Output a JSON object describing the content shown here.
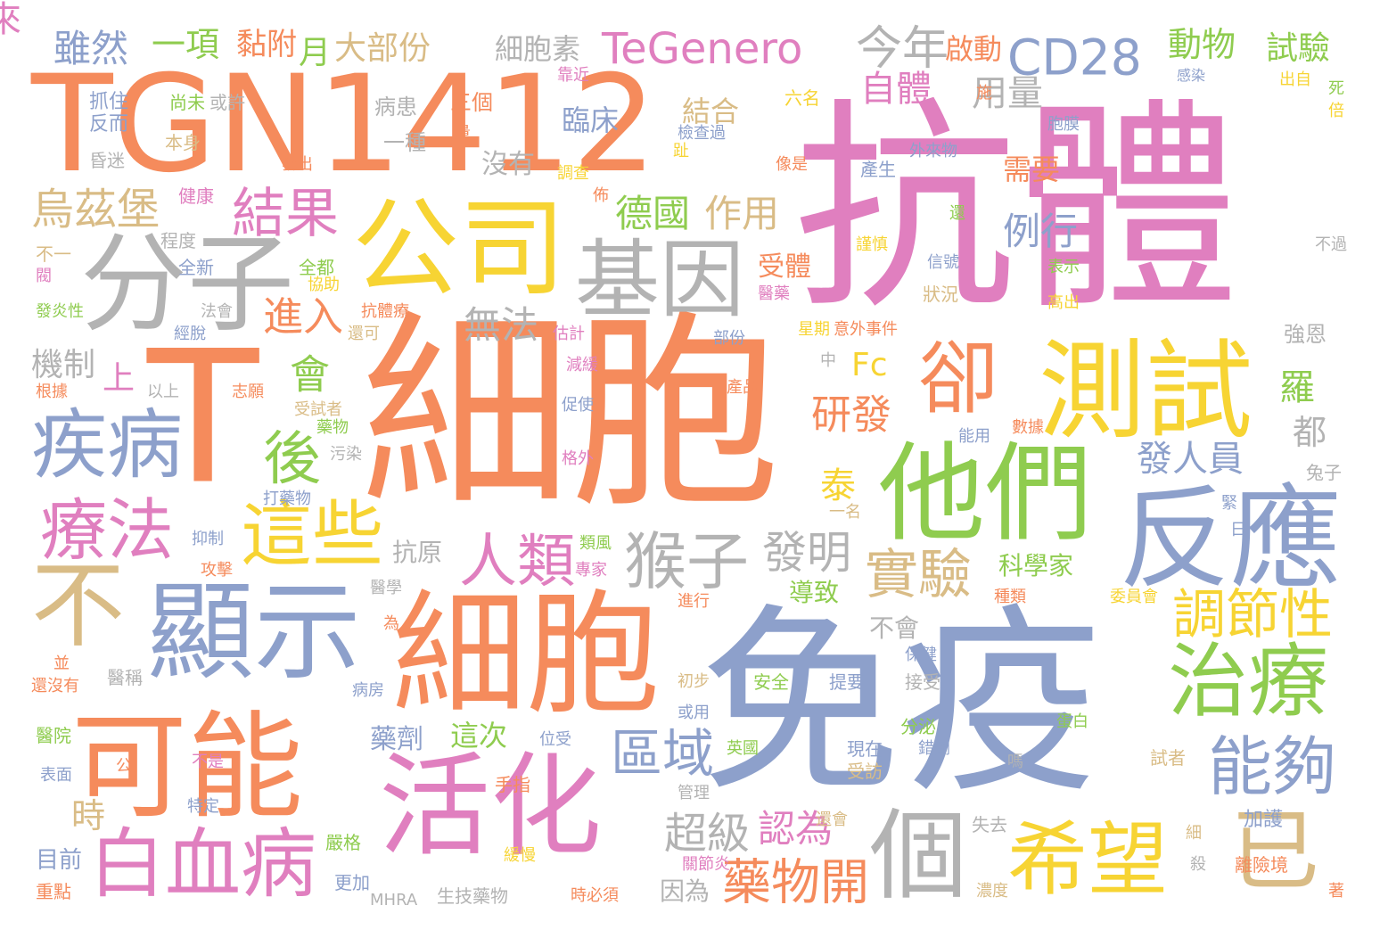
{
  "palette": {
    "orange": "#f58b5c",
    "pink": "#e07fbf",
    "blue": "#8da0cb",
    "green": "#8fcc4f",
    "yellow": "#f7d433",
    "tan": "#d9bc86",
    "gray": "#b3b3b3"
  },
  "words": [
    {
      "text": "抗體",
      "color": "pink"
    },
    {
      "text": "細胞",
      "color": "orange"
    },
    {
      "text": "免疫",
      "color": "blue"
    },
    {
      "text": "TGN1412",
      "color": "orange"
    },
    {
      "text": "T",
      "color": "orange"
    },
    {
      "text": "細胞",
      "color": "orange"
    },
    {
      "text": "分子",
      "color": "gray"
    },
    {
      "text": "公司",
      "color": "yellow"
    },
    {
      "text": "測試",
      "color": "yellow"
    },
    {
      "text": "他們",
      "color": "green"
    },
    {
      "text": "反應",
      "color": "blue"
    },
    {
      "text": "活化",
      "color": "pink"
    },
    {
      "text": "可能",
      "color": "orange"
    },
    {
      "text": "顯示",
      "color": "blue"
    },
    {
      "text": "基因",
      "color": "gray"
    },
    {
      "text": "卻",
      "color": "orange"
    },
    {
      "text": "不",
      "color": "tan"
    },
    {
      "text": "疾病",
      "color": "blue"
    },
    {
      "text": "療法",
      "color": "pink"
    },
    {
      "text": "治療",
      "color": "green"
    },
    {
      "text": "希望",
      "color": "yellow"
    },
    {
      "text": "個",
      "color": "gray"
    },
    {
      "text": "白血病",
      "color": "pink"
    },
    {
      "text": "已",
      "color": "tan"
    },
    {
      "text": "這些",
      "color": "yellow"
    },
    {
      "text": "結果",
      "color": "pink"
    },
    {
      "text": "能夠",
      "color": "blue"
    },
    {
      "text": "人類",
      "color": "pink"
    },
    {
      "text": "猴子",
      "color": "gray"
    },
    {
      "text": "實驗",
      "color": "tan"
    },
    {
      "text": "調節性",
      "color": "yellow"
    },
    {
      "text": "TeGenero",
      "color": "pink"
    },
    {
      "text": "CD28",
      "color": "blue"
    },
    {
      "text": "今年",
      "color": "gray"
    },
    {
      "text": "後",
      "color": "green"
    },
    {
      "text": "區域",
      "color": "blue"
    },
    {
      "text": "藥物開",
      "color": "orange"
    },
    {
      "text": "烏茲堡",
      "color": "tan"
    },
    {
      "text": "發明",
      "color": "gray"
    },
    {
      "text": "研發",
      "color": "orange"
    },
    {
      "text": "會",
      "color": "green"
    },
    {
      "text": "超級",
      "color": "gray"
    },
    {
      "text": "認為",
      "color": "pink"
    },
    {
      "text": "德國",
      "color": "green"
    },
    {
      "text": "作用",
      "color": "tan"
    },
    {
      "text": "來",
      "color": "pink"
    },
    {
      "text": "無法",
      "color": "gray"
    },
    {
      "text": "進入",
      "color": "orange"
    },
    {
      "text": "發人員",
      "color": "blue"
    },
    {
      "text": "泰",
      "color": "yellow"
    },
    {
      "text": "羅",
      "color": "green"
    },
    {
      "text": "都",
      "color": "gray"
    },
    {
      "text": "例行",
      "color": "blue"
    },
    {
      "text": "自體",
      "color": "pink"
    },
    {
      "text": "用量",
      "color": "gray"
    },
    {
      "text": "動物",
      "color": "green"
    },
    {
      "text": "試驗",
      "color": "green"
    },
    {
      "text": "雖然",
      "color": "blue"
    },
    {
      "text": "一項",
      "color": "green"
    },
    {
      "text": "黏附",
      "color": "orange"
    },
    {
      "text": "月",
      "color": "green"
    },
    {
      "text": "大部份",
      "color": "tan"
    },
    {
      "text": "細胞素",
      "color": "gray"
    },
    {
      "text": "啟動",
      "color": "orange"
    },
    {
      "text": "臨床",
      "color": "blue"
    },
    {
      "text": "結合",
      "color": "tan"
    },
    {
      "text": "沒有",
      "color": "gray"
    },
    {
      "text": "需要",
      "color": "orange"
    },
    {
      "text": "時",
      "color": "tan"
    },
    {
      "text": "機制",
      "color": "gray"
    },
    {
      "text": "上",
      "color": "pink"
    },
    {
      "text": "Fc",
      "color": "yellow"
    },
    {
      "text": "受體",
      "color": "orange"
    },
    {
      "text": "這次",
      "color": "green"
    },
    {
      "text": "藥劑",
      "color": "blue"
    },
    {
      "text": "抗原",
      "color": "gray"
    },
    {
      "text": "科學家",
      "color": "green"
    },
    {
      "text": "導致",
      "color": "green"
    },
    {
      "text": "不會",
      "color": "gray"
    },
    {
      "text": "因為",
      "color": "gray"
    },
    {
      "text": "三個",
      "color": "orange"
    },
    {
      "text": "病患",
      "color": "gray"
    },
    {
      "text": "一種",
      "color": "gray"
    },
    {
      "text": "抓住",
      "color": "blue"
    },
    {
      "text": "反而",
      "color": "blue"
    },
    {
      "text": "尚未",
      "color": "green"
    },
    {
      "text": "或許",
      "color": "gray"
    },
    {
      "text": "本身",
      "color": "tan"
    },
    {
      "text": "昏迷",
      "color": "gray"
    },
    {
      "text": "健康",
      "color": "pink"
    },
    {
      "text": "程度",
      "color": "gray"
    },
    {
      "text": "不一",
      "color": "tan"
    },
    {
      "text": "全新",
      "color": "blue"
    },
    {
      "text": "全都",
      "color": "green"
    },
    {
      "text": "協助",
      "color": "yellow"
    },
    {
      "text": "發炎性",
      "color": "green"
    },
    {
      "text": "法會",
      "color": "gray"
    },
    {
      "text": "經脫",
      "color": "blue"
    },
    {
      "text": "還可",
      "color": "tan"
    },
    {
      "text": "以上",
      "color": "gray"
    },
    {
      "text": "志願",
      "color": "orange"
    },
    {
      "text": "根據",
      "color": "orange"
    },
    {
      "text": "受試者",
      "color": "tan"
    },
    {
      "text": "藥物",
      "color": "green"
    },
    {
      "text": "污染",
      "color": "gray"
    },
    {
      "text": "打藥物",
      "color": "blue"
    },
    {
      "text": "抑制",
      "color": "blue"
    },
    {
      "text": "攻擊",
      "color": "orange"
    },
    {
      "text": "醫學",
      "color": "gray"
    },
    {
      "text": "醫稱",
      "color": "gray"
    },
    {
      "text": "還沒有",
      "color": "orange"
    },
    {
      "text": "醫院",
      "color": "green"
    },
    {
      "text": "表面",
      "color": "blue"
    },
    {
      "text": "公",
      "color": "orange"
    },
    {
      "text": "不是",
      "color": "pink"
    },
    {
      "text": "特定",
      "color": "blue"
    },
    {
      "text": "目前",
      "color": "blue"
    },
    {
      "text": "重點",
      "color": "orange"
    },
    {
      "text": "更加",
      "color": "blue"
    },
    {
      "text": "MHRA",
      "color": "gray"
    },
    {
      "text": "生技藥物",
      "color": "gray"
    },
    {
      "text": "時必須",
      "color": "orange"
    },
    {
      "text": "嚴格",
      "color": "green"
    },
    {
      "text": "緩慢",
      "color": "yellow"
    },
    {
      "text": "關節炎",
      "color": "pink"
    },
    {
      "text": "手指",
      "color": "orange"
    },
    {
      "text": "位受",
      "color": "blue"
    },
    {
      "text": "病房",
      "color": "blue"
    },
    {
      "text": "初步",
      "color": "tan"
    },
    {
      "text": "或用",
      "color": "blue"
    },
    {
      "text": "英國",
      "color": "green"
    },
    {
      "text": "安全",
      "color": "green"
    },
    {
      "text": "提要",
      "color": "blue"
    },
    {
      "text": "接受",
      "color": "gray"
    },
    {
      "text": "現在",
      "color": "blue"
    },
    {
      "text": "受訪",
      "color": "tan"
    },
    {
      "text": "還會",
      "color": "tan"
    },
    {
      "text": "管理",
      "color": "gray"
    },
    {
      "text": "分泌",
      "color": "green"
    },
    {
      "text": "錯劑",
      "color": "blue"
    },
    {
      "text": "失去",
      "color": "gray"
    },
    {
      "text": "嗎",
      "color": "gray"
    },
    {
      "text": "加護",
      "color": "blue"
    },
    {
      "text": "離險境",
      "color": "orange"
    },
    {
      "text": "試者",
      "color": "tan"
    },
    {
      "text": "細",
      "color": "tan"
    },
    {
      "text": "殺",
      "color": "gray"
    },
    {
      "text": "濃度",
      "color": "tan"
    },
    {
      "text": "著",
      "color": "orange"
    },
    {
      "text": "蛋白",
      "color": "green"
    },
    {
      "text": "保健",
      "color": "blue"
    },
    {
      "text": "進行",
      "color": "orange"
    },
    {
      "text": "為",
      "color": "orange"
    },
    {
      "text": "並",
      "color": "orange"
    },
    {
      "text": "種類",
      "color": "orange"
    },
    {
      "text": "委員會",
      "color": "yellow"
    },
    {
      "text": "專家",
      "color": "pink"
    },
    {
      "text": "類風",
      "color": "green"
    },
    {
      "text": "格外",
      "color": "pink"
    },
    {
      "text": "促使",
      "color": "blue"
    },
    {
      "text": "減緩",
      "color": "pink"
    },
    {
      "text": "估計",
      "color": "pink"
    },
    {
      "text": "部份",
      "color": "blue"
    },
    {
      "text": "星期",
      "color": "yellow"
    },
    {
      "text": "意外事件",
      "color": "orange"
    },
    {
      "text": "中",
      "color": "gray"
    },
    {
      "text": "產品",
      "color": "orange"
    },
    {
      "text": "能用",
      "color": "blue"
    },
    {
      "text": "數據",
      "color": "orange"
    },
    {
      "text": "兔子",
      "color": "gray"
    },
    {
      "text": "緊",
      "color": "blue"
    },
    {
      "text": "日",
      "color": "blue"
    },
    {
      "text": "一名",
      "color": "tan"
    },
    {
      "text": "強恩",
      "color": "gray"
    },
    {
      "text": "抗體療",
      "color": "orange"
    },
    {
      "text": "醫藥",
      "color": "pink"
    },
    {
      "text": "狀況",
      "color": "tan"
    },
    {
      "text": "高出",
      "color": "yellow"
    },
    {
      "text": "表示",
      "color": "green"
    },
    {
      "text": "信號",
      "color": "blue"
    },
    {
      "text": "不過",
      "color": "gray"
    },
    {
      "text": "謹慎",
      "color": "yellow"
    },
    {
      "text": "還",
      "color": "green"
    },
    {
      "text": "產生",
      "color": "blue"
    },
    {
      "text": "外來物",
      "color": "blue"
    },
    {
      "text": "像是",
      "color": "orange"
    },
    {
      "text": "六名",
      "color": "yellow"
    },
    {
      "text": "施",
      "color": "orange"
    },
    {
      "text": "檢查過",
      "color": "blue"
    },
    {
      "text": "趾",
      "color": "yellow"
    },
    {
      "text": "胞膜",
      "color": "blue"
    },
    {
      "text": "感染",
      "color": "blue"
    },
    {
      "text": "出自",
      "color": "yellow"
    },
    {
      "text": "死",
      "color": "green"
    },
    {
      "text": "倍",
      "color": "yellow"
    },
    {
      "text": "靠近",
      "color": "pink"
    },
    {
      "text": "量",
      "color": "orange"
    },
    {
      "text": "調查",
      "color": "yellow"
    },
    {
      "text": "佈",
      "color": "orange"
    },
    {
      "text": "發出",
      "color": "orange"
    },
    {
      "text": "閥",
      "color": "pink"
    }
  ]
}
